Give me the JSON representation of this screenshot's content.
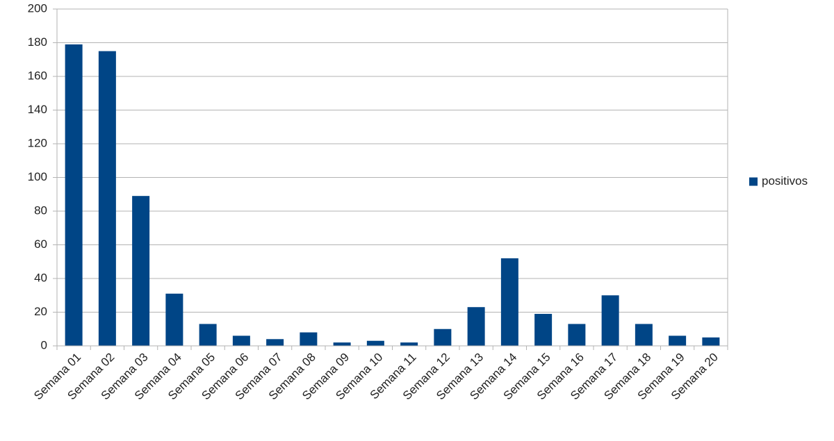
{
  "chart_data": {
    "type": "bar",
    "categories": [
      "Semana 01",
      "Semana 02",
      "Semana 03",
      "Semana 04",
      "Semana 05",
      "Semana 06",
      "Semana 07",
      "Semana 08",
      "Semana 09",
      "Semana 10",
      "Semana 11",
      "Semana 12",
      "Semana 13",
      "Semana 14",
      "Semana 15",
      "Semana 16",
      "Semana 17",
      "Semana 18",
      "Semana 19",
      "Semana 20"
    ],
    "series": [
      {
        "name": "positivos",
        "color": "#004586",
        "values": [
          179,
          175,
          89,
          31,
          13,
          6,
          4,
          8,
          2,
          3,
          2,
          10,
          23,
          52,
          19,
          13,
          30,
          13,
          6,
          5
        ]
      }
    ],
    "ylim": [
      0,
      200
    ],
    "yticks": [
      0,
      20,
      40,
      60,
      80,
      100,
      120,
      140,
      160,
      180,
      200
    ],
    "grid": true,
    "legend": "right"
  }
}
